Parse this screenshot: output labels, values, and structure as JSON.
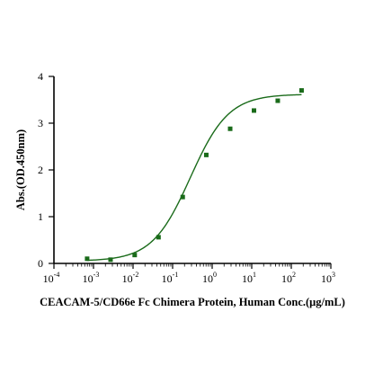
{
  "chart_data": {
    "type": "scatter",
    "title": "",
    "xlabel": "CEACAM-5/CD66e Fc Chimera Protein, Human Conc.(μg/mL)",
    "ylabel": "Abs.(OD.450nm)",
    "xscale": "log",
    "xlim": [
      0.0001,
      1000
    ],
    "ylim": [
      0,
      4
    ],
    "x_ticks": [
      {
        "base": "10",
        "exp": "-4"
      },
      {
        "base": "10",
        "exp": "-3"
      },
      {
        "base": "10",
        "exp": "-2"
      },
      {
        "base": "10",
        "exp": "-1"
      },
      {
        "base": "10",
        "exp": "0"
      },
      {
        "base": "10",
        "exp": "1"
      },
      {
        "base": "10",
        "exp": "2"
      },
      {
        "base": "10",
        "exp": "3"
      }
    ],
    "y_ticks": [
      "0",
      "1",
      "2",
      "3",
      "4"
    ],
    "grid": false,
    "series": [
      {
        "points": [
          {
            "x": 0.00069,
            "y": 0.1
          },
          {
            "x": 0.0027,
            "y": 0.08
          },
          {
            "x": 0.011,
            "y": 0.18
          },
          {
            "x": 0.044,
            "y": 0.56
          },
          {
            "x": 0.18,
            "y": 1.42
          },
          {
            "x": 0.71,
            "y": 2.32
          },
          {
            "x": 2.85,
            "y": 2.88
          },
          {
            "x": 11.4,
            "y": 3.27
          },
          {
            "x": 45.5,
            "y": 3.48
          },
          {
            "x": 182,
            "y": 3.7
          }
        ],
        "fit": {
          "model": "4PL",
          "bottom": 0.05,
          "top": 3.62,
          "ec50": 0.28,
          "hill": 0.9
        },
        "color": "#1a6b1a",
        "marker": "square"
      }
    ]
  }
}
